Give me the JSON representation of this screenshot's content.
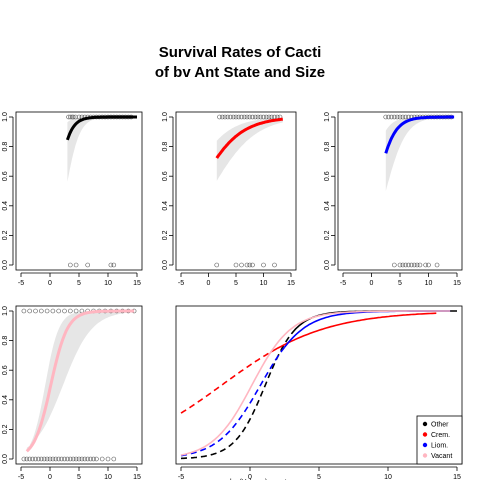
{
  "title_line1": "Survival Rates of Cacti",
  "title_line2": "of bv Ant State and Size",
  "chart_data": [
    {
      "type": "scatter",
      "panel": "Other",
      "xlim": [
        -5,
        15
      ],
      "ylim": [
        0,
        1
      ],
      "xticks": [
        -5,
        0,
        5,
        10,
        15
      ],
      "yticks": [
        0.0,
        0.2,
        0.4,
        0.6,
        0.8,
        1.0
      ],
      "curve": {
        "color": "#000000",
        "x_start": 3,
        "x_end": 15,
        "intercept": -1.0,
        "slope": 0.9
      },
      "band": {
        "upper": {
          "intercept": 0.3,
          "slope": 1.0
        },
        "lower": {
          "intercept": -2.3,
          "slope": 0.85
        }
      },
      "points_y1": [
        3.2,
        3.5,
        3.8,
        4.0,
        4.4,
        5.0,
        5.5,
        6.0,
        6.5,
        7.0,
        7.5,
        8.0,
        8.5,
        9.0,
        9.5,
        10.0,
        10.5,
        11.0,
        11.5,
        12.0,
        12.5,
        13.0,
        13.5,
        14.0
      ],
      "points_y0": [
        3.5,
        4.5,
        6.5,
        10.5,
        11.0
      ]
    },
    {
      "type": "scatter",
      "panel": "Crem.",
      "xlim": [
        -5,
        15
      ],
      "ylim": [
        0,
        1
      ],
      "xticks": [
        -5,
        0,
        5,
        10,
        15
      ],
      "yticks": [
        0.0,
        0.2,
        0.4,
        0.6,
        0.8,
        1.0
      ],
      "curve": {
        "color": "#ff0000",
        "x_start": 1.5,
        "x_end": 13.5,
        "intercept": 0.55,
        "slope": 0.27
      },
      "band": {
        "upper": {
          "intercept": 1.2,
          "slope": 0.3
        },
        "lower": {
          "intercept": -0.1,
          "slope": 0.25
        }
      },
      "points_y1": [
        2.0,
        2.5,
        3.0,
        3.5,
        4.0,
        4.5,
        5.0,
        5.5,
        6.0,
        6.5,
        7.0,
        7.5,
        8.0,
        8.5,
        9.0,
        9.5,
        10.0,
        10.5,
        11.0,
        11.5,
        12.0,
        12.5,
        13.0
      ],
      "points_y0": [
        1.5,
        5.0,
        6.0,
        7.0,
        7.5,
        8.0,
        10.0,
        12.0
      ]
    },
    {
      "type": "scatter",
      "panel": "Liom.",
      "xlim": [
        -5,
        15
      ],
      "ylim": [
        0,
        1
      ],
      "xticks": [
        -5,
        0,
        5,
        10,
        15
      ],
      "yticks": [
        0.0,
        0.2,
        0.4,
        0.6,
        0.8,
        1.0
      ],
      "curve": {
        "color": "#0000ff",
        "x_start": 2.5,
        "x_end": 14.5,
        "intercept": -0.5,
        "slope": 0.65
      },
      "band": {
        "upper": {
          "intercept": 0.4,
          "slope": 0.75
        },
        "lower": {
          "intercept": -1.4,
          "slope": 0.56
        }
      },
      "points_y1": [
        2.5,
        3.0,
        3.5,
        4.0,
        4.5,
        5.0,
        5.5,
        6.0,
        6.5,
        7.0,
        7.5,
        8.0,
        8.5,
        9.0,
        9.5,
        10.0,
        10.5,
        11.0,
        11.5,
        12.0,
        12.5,
        13.0,
        13.5,
        14.0
      ],
      "points_y0": [
        4.0,
        5.0,
        5.5,
        6.0,
        6.5,
        7.0,
        7.5,
        8.0,
        8.5,
        9.5,
        10.0,
        11.5
      ]
    },
    {
      "type": "scatter",
      "panel": "Vacant",
      "xlim": [
        -5,
        15
      ],
      "ylim": [
        0,
        1
      ],
      "xticks": [
        -5,
        0,
        5,
        10,
        15
      ],
      "yticks": [
        0.0,
        0.2,
        0.4,
        0.6,
        0.8,
        1.0
      ],
      "curve": {
        "color": "#ffb6c1",
        "x_start": -4,
        "x_end": 14.5,
        "intercept": -0.1,
        "slope": 0.7
      },
      "band": {
        "upper": {
          "intercept": 0.7,
          "slope": 0.85
        },
        "lower": {
          "intercept": -0.9,
          "slope": 0.4
        }
      },
      "points_y1": [
        -4.5,
        -3.5,
        -2.5,
        -1.5,
        -0.5,
        0.5,
        1.5,
        2.5,
        3.5,
        4.5,
        5.5,
        6.5,
        7.5,
        8.5,
        9.5,
        10.5,
        11.5,
        12.5,
        13.5,
        14.5
      ],
      "points_y0": [
        -4.5,
        -4.0,
        -3.5,
        -3.0,
        -2.5,
        -2.0,
        -1.5,
        -1.0,
        -0.5,
        0.0,
        0.5,
        1.0,
        1.5,
        2.0,
        2.5,
        3.0,
        3.5,
        4.0,
        4.5,
        5.0,
        5.5,
        6.0,
        6.5,
        7.0,
        7.5,
        8.0,
        9.0,
        10.0,
        11.0
      ]
    },
    {
      "type": "line",
      "panel": "comparison",
      "xlim": [
        -5,
        15
      ],
      "ylim": [
        0,
        1
      ],
      "xticks": [
        -5,
        0,
        5,
        10,
        15
      ],
      "series": [
        {
          "name": "Other",
          "color": "#000000",
          "dashed_to": 3,
          "x_end": 15,
          "intercept": -1.0,
          "slope": 0.9
        },
        {
          "name": "Crem.",
          "color": "#ff0000",
          "dashed_to": 1.5,
          "x_end": 13.5,
          "intercept": 0.55,
          "slope": 0.27
        },
        {
          "name": "Liom.",
          "color": "#0000ff",
          "dashed_to": 2.5,
          "x_end": 14.5,
          "intercept": -0.5,
          "slope": 0.65
        },
        {
          "name": "Vacant",
          "color": "#ffb6c1",
          "dashed_to": -5,
          "x_end": 14.5,
          "intercept": -0.1,
          "slope": 0.7
        }
      ],
      "x_start": -5,
      "legend": "bottom-right",
      "xlabel_partial": "log(Volume) year t"
    }
  ]
}
